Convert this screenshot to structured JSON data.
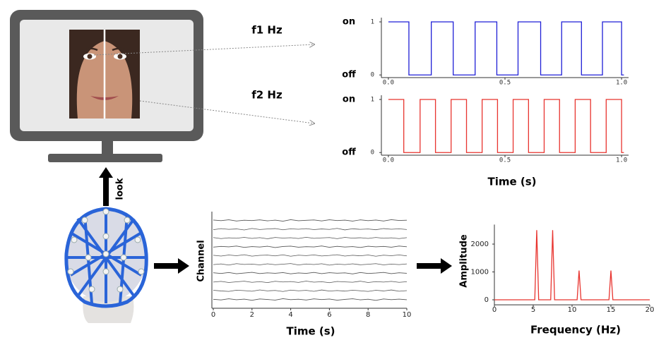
{
  "labels": {
    "f1": "f1 Hz",
    "f2": "f2 Hz",
    "look": "look"
  },
  "chart_data": [
    {
      "type": "line",
      "color": "#1f1fd6",
      "state_labels": [
        "off",
        "on"
      ],
      "x": [
        0,
        0.088,
        0.088,
        0.184,
        0.184,
        0.278,
        0.278,
        0.372,
        0.372,
        0.465,
        0.465,
        0.556,
        0.556,
        0.653,
        0.653,
        0.743,
        0.743,
        0.828,
        0.828,
        0.918,
        0.918,
        1.0,
        1.0,
        1.01
      ],
      "values": [
        1,
        1,
        0,
        0,
        1,
        1,
        0,
        0,
        1,
        1,
        0,
        0,
        1,
        1,
        0,
        0,
        1,
        1,
        0,
        0,
        1,
        1,
        0,
        0
      ],
      "xlim": [
        -0.03,
        1.03
      ],
      "ylim": [
        -0.05,
        1.08
      ],
      "xticks": [
        {
          "value": 0,
          "label": "0.0"
        },
        {
          "value": 0.5,
          "label": "0.5"
        },
        {
          "value": 1,
          "label": "1.0"
        }
      ],
      "yticks": [
        0,
        1
      ]
    },
    {
      "type": "line",
      "color": "#e8342f",
      "state_labels": [
        "off",
        "on"
      ],
      "x_label": "Time (s)",
      "x": [
        0,
        0.066,
        0.066,
        0.136,
        0.136,
        0.202,
        0.202,
        0.269,
        0.269,
        0.335,
        0.335,
        0.402,
        0.402,
        0.468,
        0.468,
        0.535,
        0.535,
        0.601,
        0.601,
        0.668,
        0.668,
        0.734,
        0.734,
        0.801,
        0.801,
        0.867,
        0.867,
        0.934,
        0.934,
        1.0,
        1.0,
        1.01
      ],
      "values": [
        1,
        1,
        0,
        0,
        1,
        1,
        0,
        0,
        1,
        1,
        0,
        0,
        1,
        1,
        0,
        0,
        1,
        1,
        0,
        0,
        1,
        1,
        0,
        0,
        1,
        1,
        0,
        0,
        1,
        1,
        0,
        0
      ],
      "xlim": [
        -0.03,
        1.03
      ],
      "ylim": [
        -0.05,
        1.08
      ],
      "xticks": [
        {
          "value": 0,
          "label": "0.0"
        },
        {
          "value": 0.5,
          "label": "0.5"
        },
        {
          "value": 1,
          "label": "1.0"
        }
      ],
      "yticks": [
        0,
        1
      ]
    },
    {
      "type": "line",
      "x_label": "Time (s)",
      "y_label": "Channel",
      "x": [
        0,
        0.4,
        0.8,
        1.2,
        1.6,
        2,
        2.4,
        2.8,
        3.2,
        3.6,
        4,
        4.4,
        4.8,
        5.2,
        5.6,
        6,
        6.4,
        6.8,
        7.2,
        7.6,
        8,
        8.4,
        8.8,
        9.2,
        9.6,
        10
      ],
      "xlim": [
        0,
        10
      ],
      "ylim": [
        0,
        11
      ],
      "xticks": [
        0,
        2,
        4,
        6,
        8,
        10
      ],
      "series": [
        {
          "color": "#555555",
          "values": [
            1.02,
            0.95,
            1.08,
            0.97,
            1.04,
            0.91,
            1.06,
            1.0,
            0.93,
            1.09,
            0.98,
            1.03,
            0.94,
            1.07,
            0.99,
            1.05,
            0.92,
            1.01,
            1.08,
            0.96,
            1.03,
            0.9,
            1.06,
            0.98,
            1.04,
            0.97
          ]
        },
        {
          "color": "#555555",
          "values": [
            2.05,
            1.97,
            1.92,
            2.06,
            2.01,
            1.94,
            2.09,
            1.98,
            2.03,
            1.91,
            2.07,
            1.99,
            2.04,
            1.93,
            2.08,
            1.96,
            2.02,
            1.95,
            2.06,
            1.99,
            1.92,
            2.05,
            1.97,
            2.08,
            1.94,
            2.01
          ]
        },
        {
          "color": "#555555",
          "values": [
            2.98,
            3.06,
            2.93,
            3.01,
            3.08,
            2.95,
            3.03,
            2.92,
            3.07,
            2.99,
            3.04,
            2.94,
            3.09,
            2.97,
            3.02,
            2.91,
            3.05,
            3.0,
            2.96,
            3.08,
            2.93,
            3.03,
            2.98,
            3.06,
            2.95,
            3.02
          ]
        },
        {
          "color": "#555555",
          "values": [
            4.04,
            3.96,
            4.07,
            3.93,
            4.01,
            4.09,
            3.95,
            4.03,
            3.98,
            4.06,
            3.92,
            4.02,
            3.97,
            4.08,
            3.94,
            4.05,
            3.99,
            4.03,
            3.91,
            4.07,
            3.96,
            4.01,
            4.08,
            3.94,
            4.04,
            3.98
          ]
        },
        {
          "color": "#555555",
          "values": [
            4.97,
            5.05,
            4.92,
            5.08,
            4.99,
            5.03,
            4.94,
            5.06,
            4.96,
            5.02,
            5.09,
            4.93,
            5.04,
            4.98,
            5.07,
            4.91,
            5.03,
            4.97,
            5.06,
            4.95,
            5.01,
            5.08,
            4.94,
            5.03,
            4.97,
            5.05
          ]
        },
        {
          "color": "#555555",
          "values": [
            6.03,
            5.94,
            6.06,
            5.98,
            6.09,
            5.93,
            6.02,
            6.05,
            5.96,
            6.08,
            5.92,
            6.04,
            5.99,
            6.07,
            5.95,
            6.01,
            6.09,
            5.94,
            6.03,
            5.97,
            6.06,
            5.92,
            6.04,
            5.98,
            6.07,
            5.96
          ]
        },
        {
          "color": "#555555",
          "values": [
            6.96,
            7.04,
            6.99,
            7.08,
            6.93,
            7.02,
            6.97,
            7.06,
            6.91,
            7.03,
            7.07,
            6.95,
            7.01,
            6.98,
            7.09,
            6.94,
            7.05,
            6.97,
            7.02,
            6.92,
            7.06,
            6.99,
            7.04,
            6.95,
            7.08,
            7.0
          ]
        },
        {
          "color": "#555555",
          "values": [
            8.05,
            7.93,
            8.02,
            7.97,
            8.07,
            7.95,
            8.04,
            7.91,
            8.06,
            7.99,
            8.03,
            7.94,
            8.08,
            7.96,
            8.01,
            8.05,
            7.92,
            8.07,
            7.98,
            8.03,
            7.95,
            8.06,
            7.97,
            8.02,
            7.93,
            8.04
          ]
        },
        {
          "color": "#555555",
          "values": [
            8.94,
            9.06,
            8.98,
            9.03,
            8.91,
            9.08,
            8.96,
            9.02,
            9.07,
            8.93,
            9.04,
            8.99,
            9.06,
            8.95,
            9.03,
            8.97,
            9.09,
            8.92,
            9.05,
            8.98,
            9.02,
            8.94,
            9.07,
            8.99,
            9.04,
            8.96
          ]
        },
        {
          "color": "#555555",
          "values": [
            10.04,
            9.97,
            10.07,
            9.93,
            10.02,
            9.98,
            10.06,
            9.95,
            10.03,
            9.91,
            10.08,
            9.96,
            10.01,
            10.05,
            9.94,
            10.07,
            9.98,
            10.03,
            9.92,
            10.06,
            9.97,
            10.04,
            9.93,
            10.08,
            9.99,
            10.02
          ]
        }
      ]
    },
    {
      "type": "line",
      "color": "#e8342f",
      "x_label": "Frequency (Hz)",
      "y_label": "Amplitude",
      "x": [
        0,
        5.2,
        5.45,
        5.7,
        7.25,
        7.5,
        7.75,
        10.65,
        10.9,
        11.15,
        14.75,
        15,
        15.25,
        20
      ],
      "values": [
        0,
        0,
        2500,
        0,
        0,
        2500,
        0,
        0,
        1050,
        0,
        0,
        1050,
        0,
        0
      ],
      "xlim": [
        0,
        20
      ],
      "ylim": [
        -180,
        2700
      ],
      "xticks": [
        0,
        5,
        10,
        15,
        20
      ],
      "yticks": [
        0,
        1000,
        2000
      ]
    }
  ]
}
